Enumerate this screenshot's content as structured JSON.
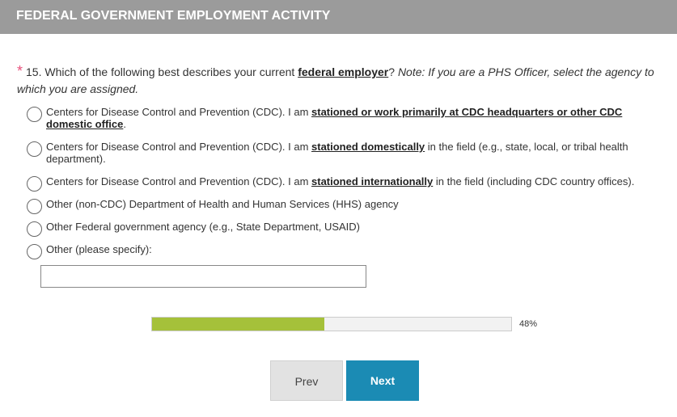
{
  "header": {
    "title": "FEDERAL GOVERNMENT EMPLOYMENT ACTIVITY"
  },
  "question": {
    "required_mark": "*",
    "parts": [
      "15. Which of the following best describes your current ",
      {
        "text": "federal employer",
        "strong": true
      },
      "?"
    ],
    "note": "Note: If you are a PHS Officer, select the agency to which you are assigned."
  },
  "options": [
    {
      "parts": [
        "Centers for Disease Control and Prevention (CDC). I am ",
        {
          "text": "stationed or work primarily at CDC headquarters or other CDC domestic office",
          "strong": true
        },
        "."
      ]
    },
    {
      "parts": [
        "Centers for Disease Control and Prevention (CDC). I am ",
        {
          "text": "stationed domestically",
          "strong": true
        },
        " in the field (e.g., state, local, or tribal health department)."
      ]
    },
    {
      "parts": [
        "Centers for Disease Control and Prevention (CDC). I am ",
        {
          "text": "stationed internationally",
          "strong": true
        },
        " in the field (including CDC country offices)."
      ]
    },
    {
      "parts": [
        "Other (non-CDC) Department of Health and Human Services (HHS) agency"
      ]
    },
    {
      "parts": [
        "Other Federal government agency (e.g., State Department, USAID)"
      ]
    },
    {
      "parts": [
        "Other (please specify):"
      ]
    }
  ],
  "progress": {
    "value": 48,
    "label": "48%"
  },
  "buttons": {
    "prev": "Prev",
    "next": "Next"
  }
}
